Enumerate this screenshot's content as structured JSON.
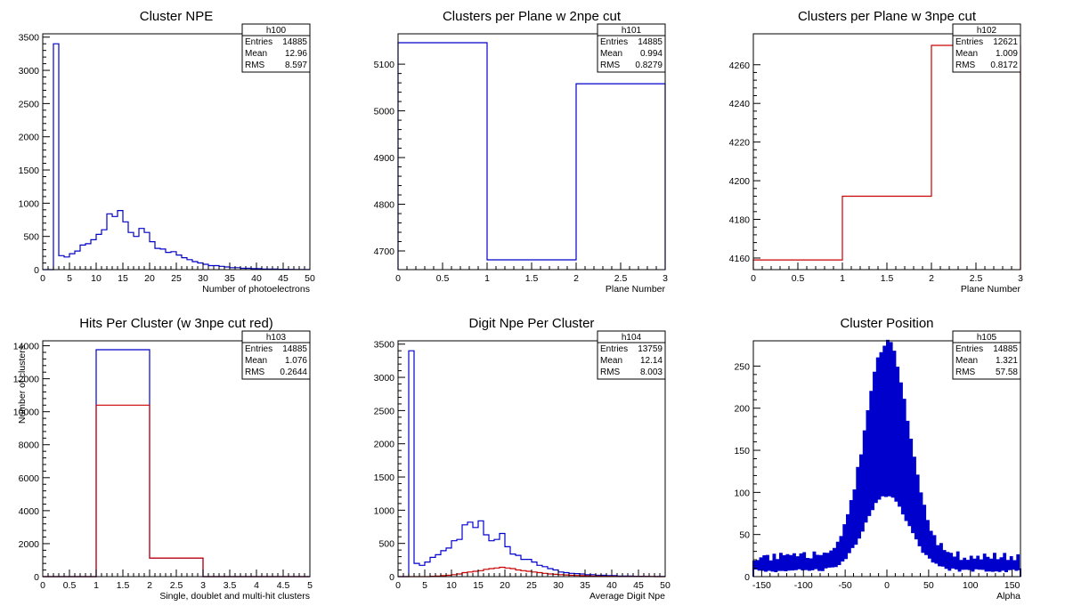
{
  "chart_data": [
    {
      "type": "histogram",
      "title": "Cluster NPE",
      "xlabel": "Number of photoelectrons",
      "ylabel": "",
      "xlim": [
        0,
        50
      ],
      "ylim": [
        0,
        3550
      ],
      "xticks": [
        0,
        5,
        10,
        15,
        20,
        25,
        30,
        35,
        40,
        45,
        50
      ],
      "yticks": [
        0,
        500,
        1000,
        1500,
        2000,
        2500,
        3000,
        3500
      ],
      "stats": {
        "name": "h100",
        "rows": [
          [
            "Entries",
            "14885"
          ],
          [
            "Mean",
            "12.96"
          ],
          [
            "RMS",
            "8.597"
          ]
        ]
      },
      "series": [
        {
          "color": "#0000cc",
          "edges": [
            0,
            1,
            2,
            3,
            4,
            5,
            6,
            7,
            8,
            9,
            10,
            11,
            12,
            13,
            14,
            15,
            16,
            17,
            18,
            19,
            20,
            21,
            22,
            23,
            24,
            25,
            26,
            27,
            28,
            29,
            30,
            31,
            32,
            33,
            34,
            35,
            36,
            37,
            38,
            39,
            40,
            41,
            42,
            43,
            44,
            45,
            46,
            47,
            48,
            49,
            50
          ],
          "values": [
            0,
            0,
            3400,
            210,
            190,
            240,
            280,
            370,
            390,
            450,
            530,
            600,
            840,
            800,
            890,
            720,
            560,
            500,
            620,
            560,
            420,
            320,
            310,
            260,
            270,
            220,
            180,
            150,
            120,
            100,
            80,
            60,
            60,
            50,
            40,
            30,
            30,
            20,
            20,
            15,
            15,
            10,
            10,
            8,
            6,
            5,
            4,
            3,
            2,
            1
          ]
        }
      ]
    },
    {
      "type": "histogram",
      "title": "Clusters per Plane w 2npe cut",
      "xlabel": "Plane Number",
      "ylabel": "",
      "xlim": [
        0,
        3
      ],
      "ylim": [
        4660,
        5165
      ],
      "xticks": [
        0,
        0.5,
        1,
        1.5,
        2,
        2.5,
        3
      ],
      "yticks": [
        4700,
        4800,
        4900,
        5000,
        5100
      ],
      "stats": {
        "name": "h101",
        "rows": [
          [
            "Entries",
            "14885"
          ],
          [
            "Mean",
            "0.994"
          ],
          [
            "RMS",
            "0.8279"
          ]
        ]
      },
      "series": [
        {
          "color": "#0000cc",
          "edges": [
            0,
            1,
            2,
            3
          ],
          "values": [
            5146,
            4681,
            5058
          ]
        }
      ]
    },
    {
      "type": "histogram",
      "title": "Clusters per Plane w 3npe cut",
      "xlabel": "Plane Number",
      "ylabel": "",
      "xlim": [
        0,
        3
      ],
      "ylim": [
        4154,
        4276
      ],
      "xticks": [
        0,
        0.5,
        1,
        1.5,
        2,
        2.5,
        3
      ],
      "yticks": [
        4160,
        4180,
        4200,
        4220,
        4240,
        4260
      ],
      "stats": {
        "name": "h102",
        "rows": [
          [
            "Entries",
            "12621"
          ],
          [
            "Mean",
            "1.009"
          ],
          [
            "RMS",
            "0.8172"
          ]
        ]
      },
      "series": [
        {
          "color": "#cc0000",
          "edges": [
            0,
            1,
            2,
            3
          ],
          "values": [
            4159,
            4192,
            4270
          ]
        }
      ]
    },
    {
      "type": "histogram",
      "title": "Hits Per Cluster (w 3npe cut red)",
      "xlabel": "Single, doublet and multi-hit clusters",
      "ylabel": "Number of clusters",
      "xlim": [
        0,
        5
      ],
      "ylim": [
        0,
        14300
      ],
      "xticks": [
        0,
        0.5,
        1,
        1.5,
        2,
        2.5,
        3,
        3.5,
        4,
        4.5,
        5
      ],
      "yticks": [
        0,
        2000,
        4000,
        6000,
        8000,
        10000,
        12000,
        14000
      ],
      "stats": {
        "name": "h103",
        "rows": [
          [
            "Entries",
            "14885"
          ],
          [
            "Mean",
            "1.076"
          ],
          [
            "RMS",
            "0.2644"
          ]
        ]
      },
      "series": [
        {
          "color": "#0000cc",
          "edges": [
            0,
            1,
            2,
            3,
            4,
            5
          ],
          "values": [
            0,
            13759,
            1126,
            0,
            0
          ]
        },
        {
          "color": "#cc0000",
          "edges": [
            0,
            1,
            2,
            3,
            4,
            5
          ],
          "values": [
            0,
            10400,
            1126,
            0,
            0
          ]
        }
      ]
    },
    {
      "type": "histogram",
      "title": "Digit Npe Per Cluster",
      "xlabel": "Average Digit Npe",
      "ylabel": "",
      "xlim": [
        0,
        50
      ],
      "ylim": [
        0,
        3550
      ],
      "xticks": [
        0,
        5,
        10,
        15,
        20,
        25,
        30,
        35,
        40,
        45,
        50
      ],
      "yticks": [
        0,
        500,
        1000,
        1500,
        2000,
        2500,
        3000,
        3500
      ],
      "stats": {
        "name": "h104",
        "rows": [
          [
            "Entries",
            "13759"
          ],
          [
            "Mean",
            "12.14"
          ],
          [
            "RMS",
            "8.003"
          ]
        ]
      },
      "series": [
        {
          "color": "#0000cc",
          "edges": [
            0,
            1,
            2,
            3,
            4,
            5,
            6,
            7,
            8,
            9,
            10,
            11,
            12,
            13,
            14,
            15,
            16,
            17,
            18,
            19,
            20,
            21,
            22,
            23,
            24,
            25,
            26,
            27,
            28,
            29,
            30,
            31,
            32,
            33,
            34,
            35,
            36,
            37,
            38,
            39,
            40,
            41,
            42,
            43,
            44,
            45,
            46,
            47,
            48,
            49,
            50
          ],
          "values": [
            0,
            0,
            3400,
            200,
            170,
            220,
            290,
            330,
            390,
            430,
            540,
            560,
            780,
            820,
            740,
            840,
            630,
            540,
            560,
            650,
            450,
            340,
            320,
            260,
            260,
            220,
            170,
            150,
            120,
            100,
            70,
            60,
            50,
            45,
            40,
            30,
            30,
            20,
            20,
            15,
            15,
            10,
            10,
            8,
            6,
            5,
            4,
            3,
            2,
            1
          ]
        },
        {
          "color": "#cc0000",
          "edges": [
            0,
            1,
            2,
            3,
            4,
            5,
            6,
            7,
            8,
            9,
            10,
            11,
            12,
            13,
            14,
            15,
            16,
            17,
            18,
            19,
            20,
            21,
            22,
            23,
            24,
            25,
            26,
            27,
            28,
            29,
            30,
            31,
            32,
            33,
            34,
            35,
            36,
            37,
            38,
            39,
            40,
            41,
            42,
            43,
            44,
            45,
            46,
            47,
            48,
            49,
            50
          ],
          "values": [
            0,
            0,
            0,
            0,
            0,
            0,
            5,
            10,
            15,
            20,
            30,
            40,
            60,
            70,
            80,
            90,
            110,
            120,
            130,
            140,
            130,
            120,
            100,
            90,
            80,
            70,
            60,
            50,
            40,
            35,
            30,
            25,
            20,
            18,
            15,
            12,
            10,
            8,
            6,
            5,
            4,
            3,
            3,
            2,
            2,
            1,
            1,
            1,
            0,
            0
          ]
        }
      ]
    },
    {
      "type": "histogram",
      "title": "Cluster Position",
      "xlabel": "Alpha",
      "ylabel": "",
      "xlim": [
        -160,
        160
      ],
      "ylim": [
        0,
        280
      ],
      "xticks": [
        -150,
        -100,
        -50,
        0,
        50,
        100,
        150
      ],
      "yticks": [
        0,
        50,
        100,
        150,
        200,
        250
      ],
      "stats": {
        "name": "h105",
        "rows": [
          [
            "Entries",
            "14885"
          ],
          [
            "Mean",
            "1.321"
          ],
          [
            "RMS",
            "57.58"
          ]
        ]
      },
      "series": [
        {
          "color": "#0000cc",
          "profile": {
            "sigma": 26,
            "peak": 255,
            "base": 18,
            "nbins": 160
          }
        }
      ]
    }
  ]
}
